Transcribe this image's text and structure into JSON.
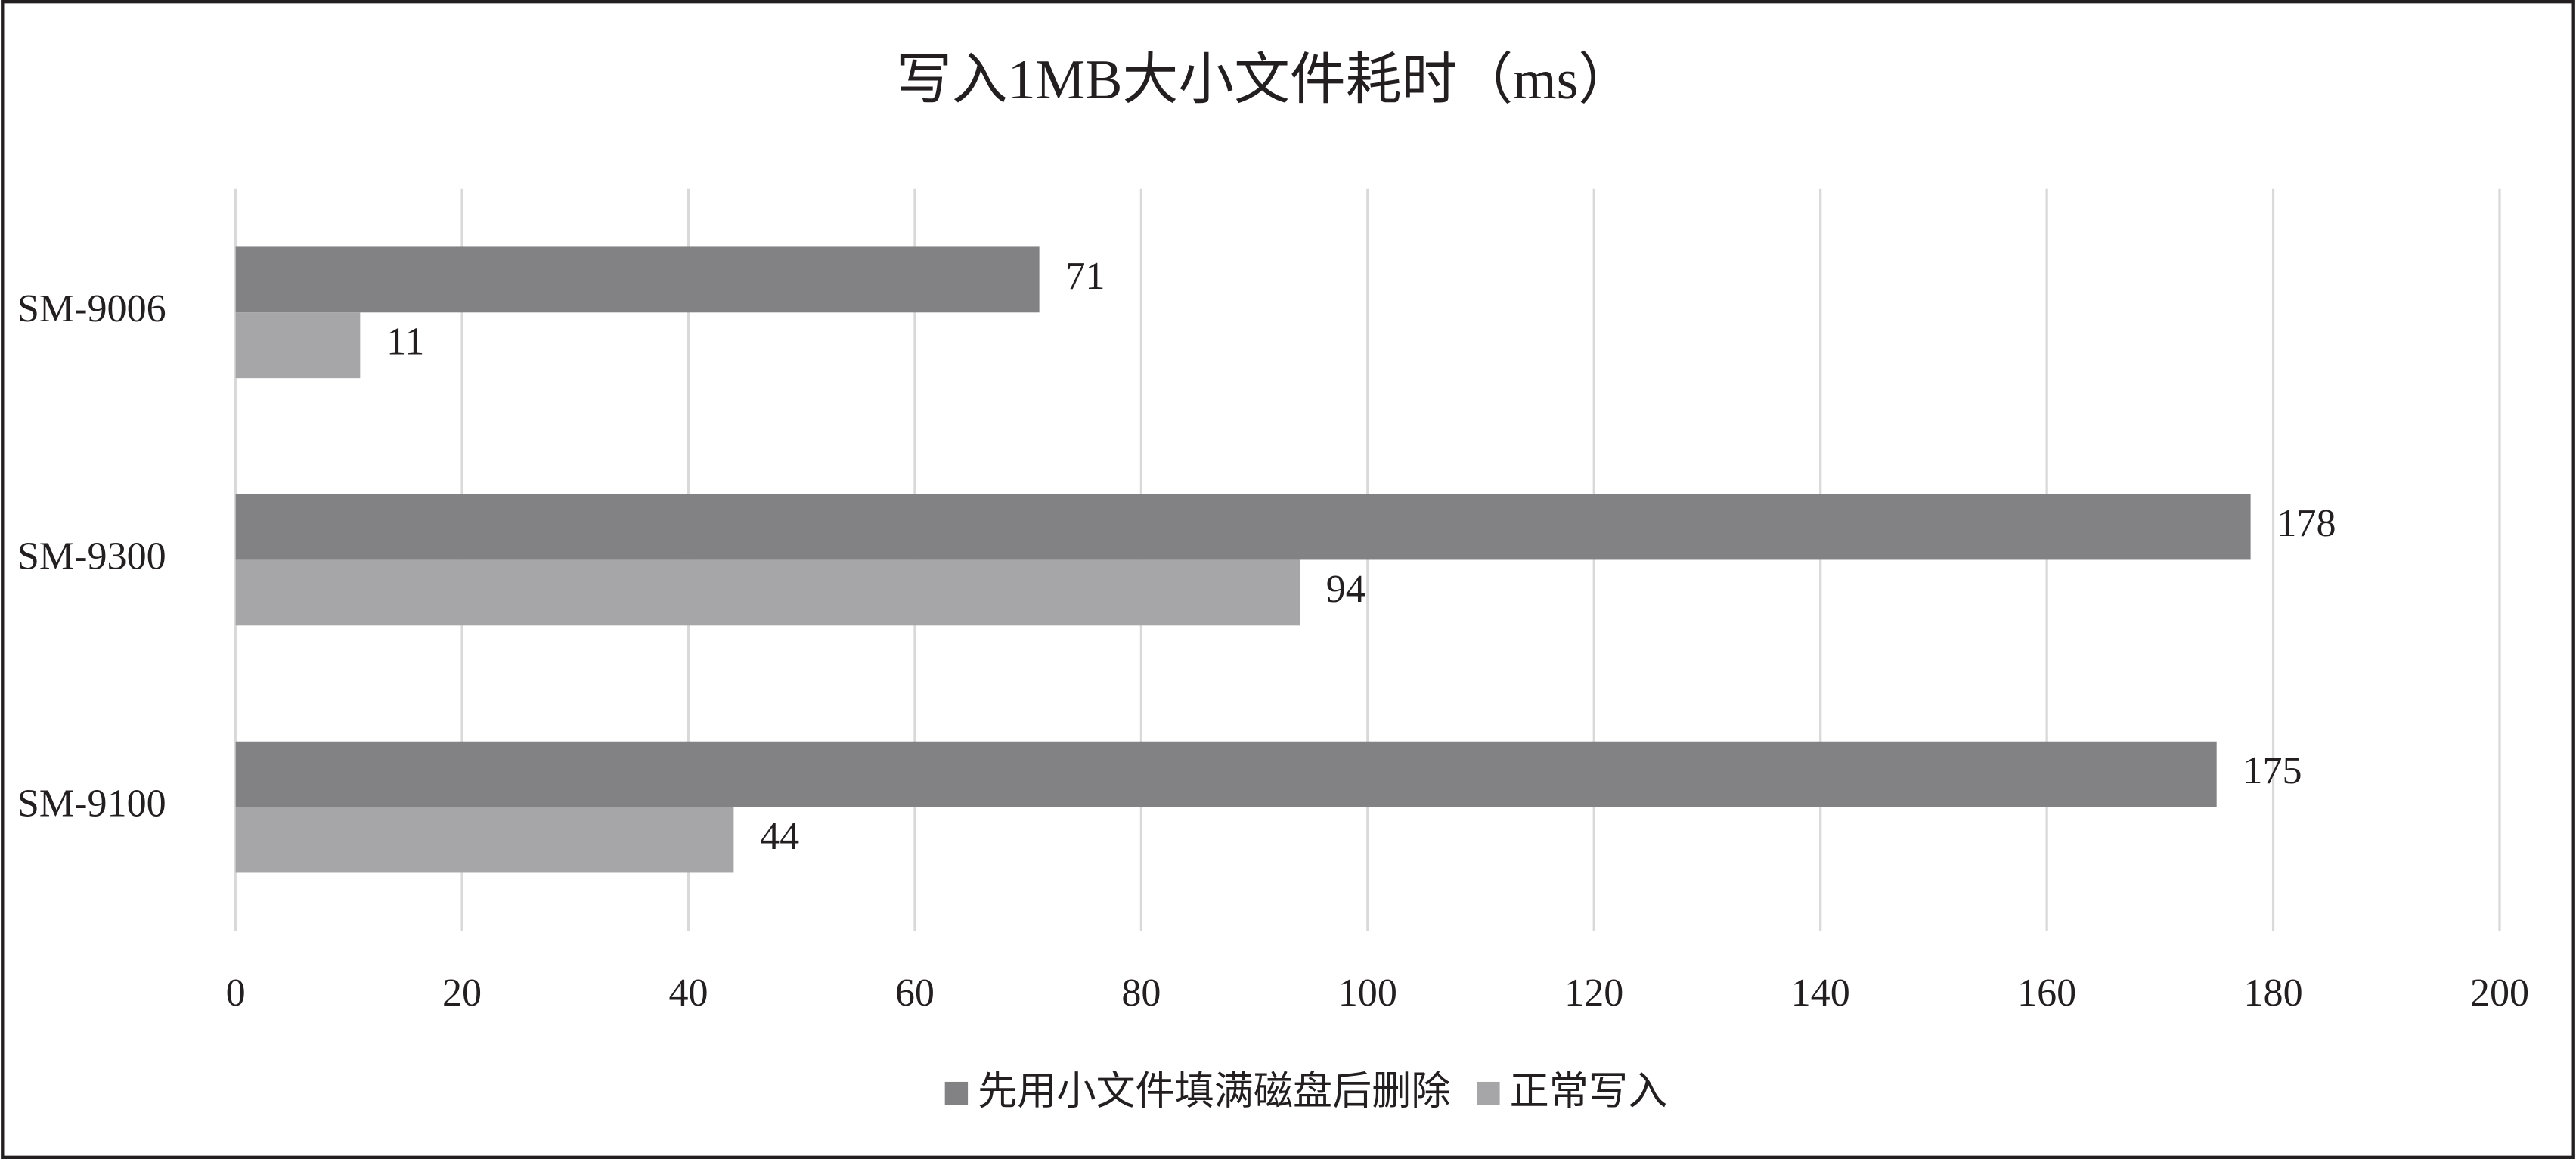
{
  "chart_data": {
    "type": "bar",
    "orientation": "horizontal",
    "title": "写入1MB大小文件耗时（ms）",
    "categories": [
      "SM-9006",
      "SM-9300",
      "SM-9100"
    ],
    "series": [
      {
        "name": "先用小文件填满磁盘后删除",
        "color": "#828285",
        "values": [
          71,
          178,
          175
        ]
      },
      {
        "name": "正常写入",
        "color": "#a6a6a8",
        "values": [
          11,
          94,
          44
        ]
      }
    ],
    "xlim": [
      0,
      200
    ],
    "xticks": [
      0,
      20,
      40,
      60,
      80,
      100,
      120,
      140,
      160,
      180,
      200
    ],
    "grid": true,
    "data_labels": true,
    "legend": "bottom"
  }
}
